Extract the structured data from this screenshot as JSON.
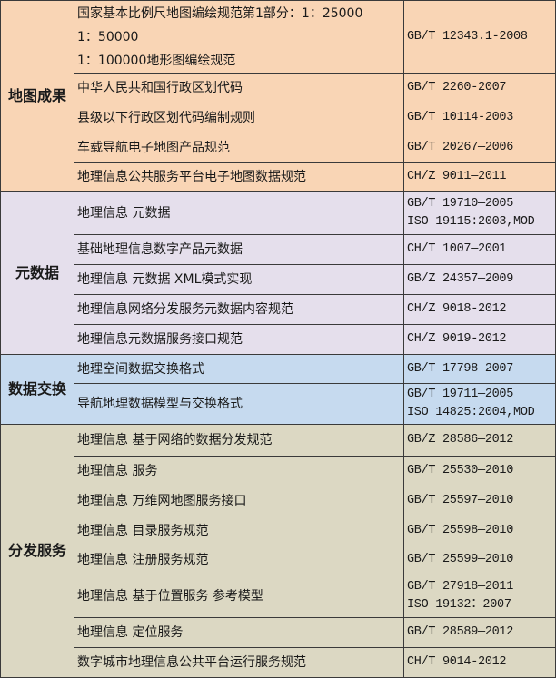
{
  "colors": {
    "地图成果": "#F9D5B5",
    "元数据": "#E5DFEC",
    "数据交换": "#C6DAEF",
    "分发服务": "#DCD8C3",
    "border": "#3a3a3a"
  },
  "groups": [
    {
      "name": "地图成果",
      "rows": [
        {
          "name": [
            "国家基本比例尺地图编绘规范第1部分：1：25000",
            "1：50000",
            "1：100000地形图编绘规范"
          ],
          "code": [
            "GB/T 12343.1-2008"
          ]
        },
        {
          "name": [
            "中华人民共和国行政区划代码"
          ],
          "code": [
            "GB/T 2260-2007"
          ]
        },
        {
          "name": [
            "县级以下行政区划代码编制规则"
          ],
          "code": [
            "GB/T 10114-2003"
          ]
        },
        {
          "name": [
            "车载导航电子地图产品规范"
          ],
          "code": [
            "GB/T 20267—2006"
          ]
        },
        {
          "name": [
            "地理信息公共服务平台电子地图数据规范"
          ],
          "code": [
            "CH/Z 9011—2011"
          ]
        }
      ]
    },
    {
      "name": "元数据",
      "rows": [
        {
          "name": [
            "地理信息 元数据"
          ],
          "code": [
            "GB/T 19710—2005",
            "ISO 19115:2003,MOD"
          ]
        },
        {
          "name": [
            "基础地理信息数字产品元数据"
          ],
          "code": [
            "CH/T 1007—2001"
          ]
        },
        {
          "name": [
            "地理信息 元数据 XML模式实现"
          ],
          "code": [
            "GB/Z 24357—2009"
          ]
        },
        {
          "name": [
            "地理信息网络分发服务元数据内容规范"
          ],
          "code": [
            "CH/Z 9018-2012"
          ]
        },
        {
          "name": [
            "地理信息元数据服务接口规范"
          ],
          "code": [
            "CH/Z 9019-2012"
          ]
        }
      ]
    },
    {
      "name": "数据交换",
      "rows": [
        {
          "name": [
            "地理空间数据交换格式"
          ],
          "code": [
            "GB/T 17798—2007"
          ]
        },
        {
          "name": [
            "导航地理数据模型与交换格式"
          ],
          "code": [
            "GB/T 19711—2005",
            "ISO 14825:2004,MOD"
          ]
        }
      ]
    },
    {
      "name": "分发服务",
      "rows": [
        {
          "name": [
            "地理信息 基于网络的数据分发规范"
          ],
          "code": [
            "GB/Z 28586—2012"
          ]
        },
        {
          "name": [
            "地理信息 服务"
          ],
          "code": [
            "GB/T 25530—2010"
          ]
        },
        {
          "name": [
            "地理信息 万维网地图服务接口"
          ],
          "code": [
            "GB/T 25597—2010"
          ]
        },
        {
          "name": [
            "地理信息 目录服务规范"
          ],
          "code": [
            "GB/T 25598—2010"
          ]
        },
        {
          "name": [
            "地理信息 注册服务规范"
          ],
          "code": [
            "GB/T 25599—2010"
          ]
        },
        {
          "name": [
            "地理信息 基于位置服务 参考模型"
          ],
          "code": [
            "GB/T 27918—2011",
            "ISO 19132：2007"
          ]
        },
        {
          "name": [
            "地理信息 定位服务"
          ],
          "code": [
            "GB/T 28589—2012"
          ]
        },
        {
          "name": [
            "数字城市地理信息公共平台运行服务规范"
          ],
          "code": [
            "CH/T 9014-2012"
          ]
        }
      ]
    }
  ]
}
